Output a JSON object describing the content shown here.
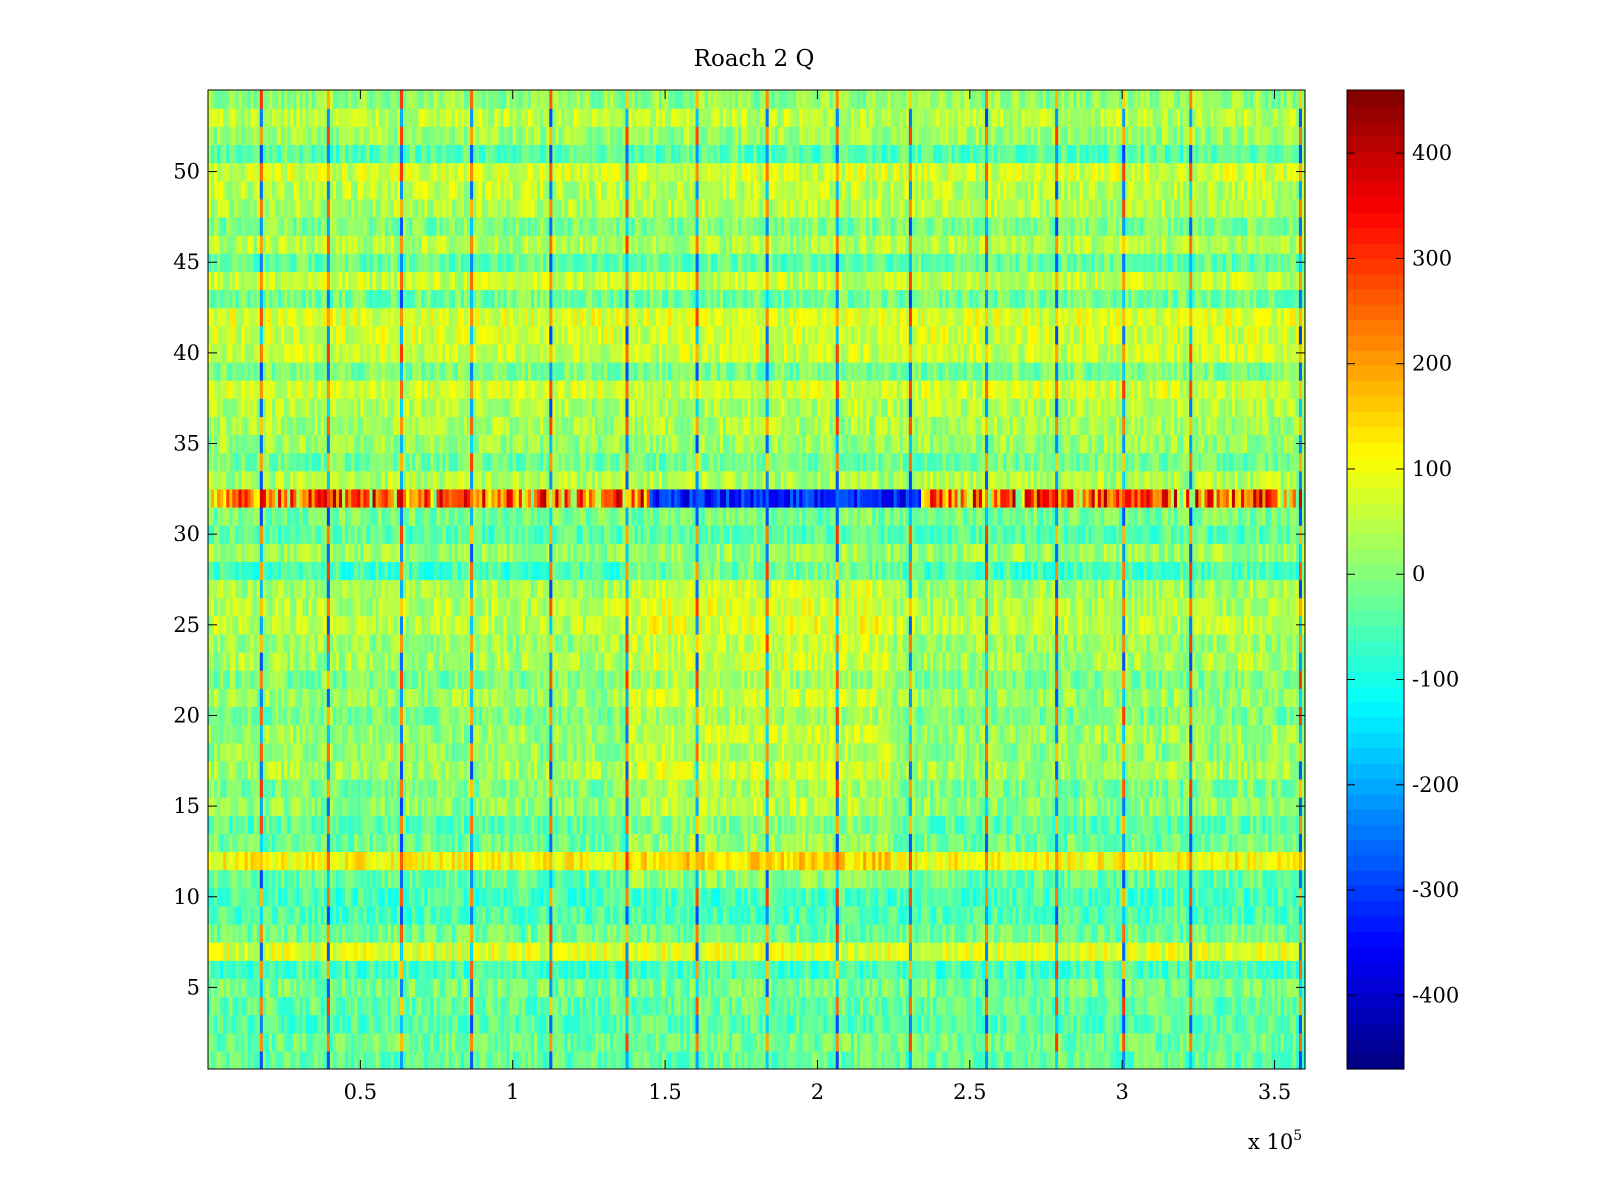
{
  "chart_data": {
    "type": "heatmap",
    "title": "Roach 2 Q",
    "xlabel": "",
    "ylabel": "",
    "x_multiplier_label": "x 10",
    "x_multiplier_exponent": "5",
    "xlim": [
      0,
      3.6
    ],
    "ylim": [
      0.5,
      54.5
    ],
    "x_ticks": [
      0.5,
      1,
      1.5,
      2,
      2.5,
      3,
      3.5
    ],
    "x_tick_labels": [
      "0.5",
      "1",
      "1.5",
      "2",
      "2.5",
      "3",
      "3.5"
    ],
    "y_ticks": [
      5,
      10,
      15,
      20,
      25,
      30,
      35,
      40,
      45,
      50
    ],
    "y_tick_labels": [
      "5",
      "10",
      "15",
      "20",
      "25",
      "30",
      "35",
      "40",
      "45",
      "50"
    ],
    "rows": 54,
    "colormap": "jet",
    "color_limits": [
      -470,
      460
    ],
    "colorbar": {
      "ticks": [
        400,
        300,
        200,
        100,
        0,
        -100,
        -200,
        -300,
        -400
      ],
      "tick_labels": [
        "400",
        "300",
        "200",
        "100",
        "0",
        "-100",
        "-200",
        "-300",
        "-400"
      ],
      "placement": "right"
    },
    "row_levels": [
      -30,
      -20,
      -40,
      -30,
      -10,
      -60,
      80,
      -20,
      -50,
      -60,
      -30,
      110,
      -20,
      -40,
      10,
      -10,
      30,
      10,
      20,
      -10,
      20,
      -10,
      30,
      20,
      50,
      40,
      30,
      -60,
      20,
      -40,
      -10,
      250,
      40,
      -20,
      20,
      30,
      40,
      70,
      -10,
      60,
      70,
      80,
      -20,
      60,
      -30,
      40,
      -10,
      40,
      50,
      70,
      -40,
      20,
      50,
      10
    ],
    "stripe_positions": [
      0.165,
      0.39,
      0.63,
      0.865,
      1.12,
      1.37,
      1.6,
      1.83,
      2.06,
      2.3,
      2.55,
      2.78,
      3.0,
      3.22,
      3.58
    ],
    "series": []
  }
}
